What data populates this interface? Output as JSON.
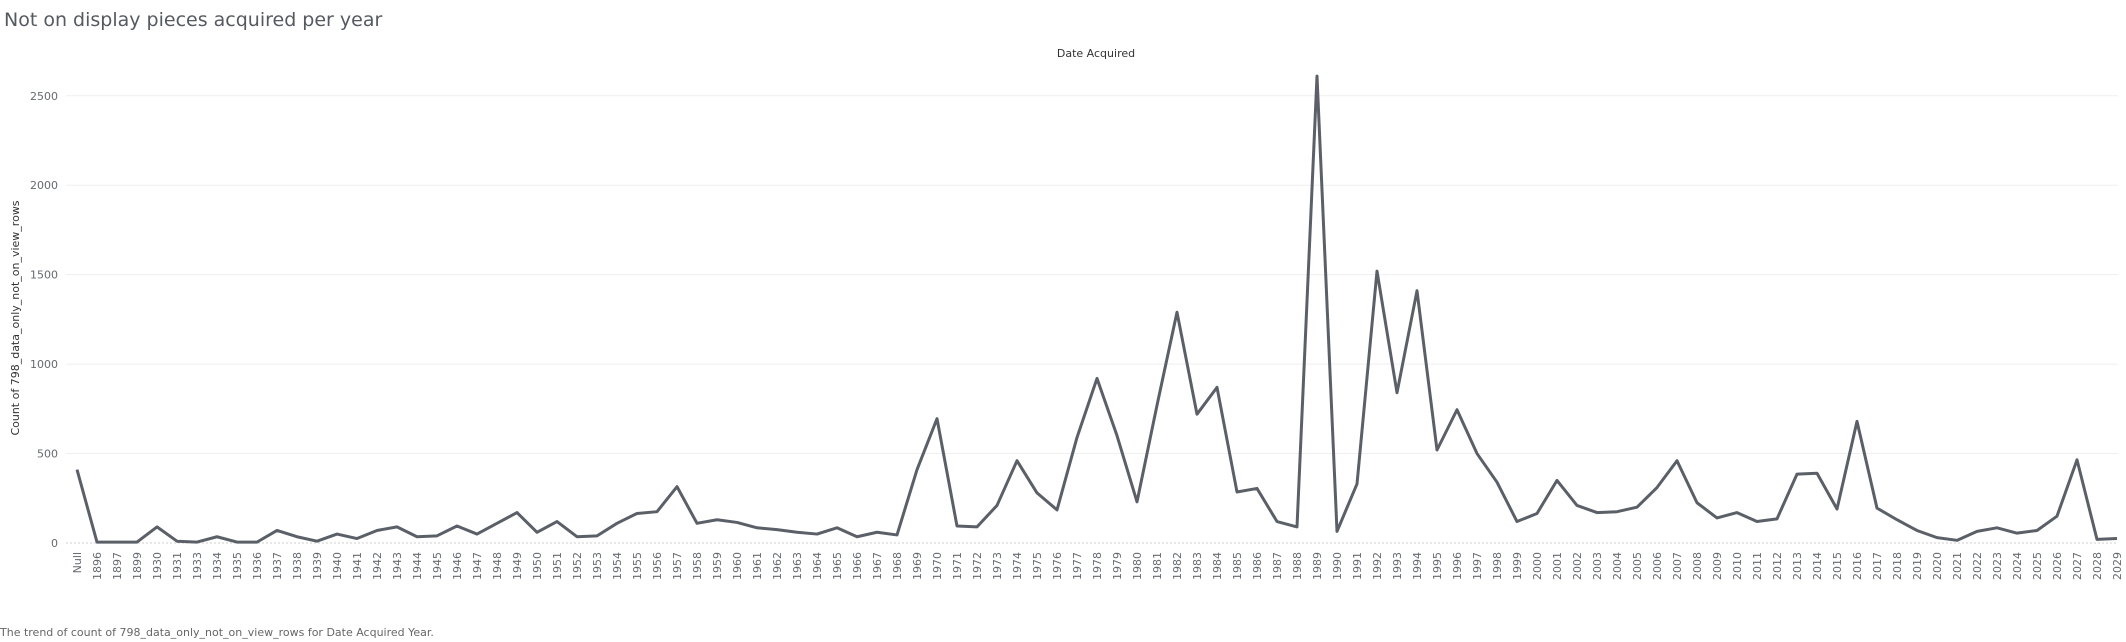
{
  "page": {
    "title": "Not on display pieces acquired per year",
    "caption": "The trend of count of 798_data_only_not_on_view_rows for Date Acquired Year."
  },
  "chart_data": {
    "type": "line",
    "title": "Not on display pieces acquired per year",
    "xlabel": "Date Acquired",
    "ylabel": "Count of 798_data_only_not_on_view_rows",
    "ylim": [
      0,
      2700
    ],
    "yticks": [
      0,
      500,
      1000,
      1500,
      2000,
      2500
    ],
    "grid": true,
    "series_color": "#5b6068",
    "categories": [
      "Null",
      "1896",
      "1897",
      "1899",
      "1930",
      "1931",
      "1933",
      "1934",
      "1935",
      "1936",
      "1937",
      "1938",
      "1939",
      "1940",
      "1941",
      "1942",
      "1943",
      "1944",
      "1945",
      "1946",
      "1947",
      "1948",
      "1949",
      "1950",
      "1951",
      "1952",
      "1953",
      "1954",
      "1955",
      "1956",
      "1957",
      "1958",
      "1959",
      "1960",
      "1961",
      "1962",
      "1963",
      "1964",
      "1965",
      "1966",
      "1967",
      "1968",
      "1969",
      "1970",
      "1971",
      "1972",
      "1973",
      "1974",
      "1975",
      "1976",
      "1977",
      "1978",
      "1979",
      "1980",
      "1981",
      "1982",
      "1983",
      "1984",
      "1985",
      "1986",
      "1987",
      "1988",
      "1989",
      "1990",
      "1991",
      "1992",
      "1993",
      "1994",
      "1995",
      "1996",
      "1997",
      "1998",
      "1999",
      "2000",
      "2001",
      "2002",
      "2003",
      "2004",
      "2005",
      "2006",
      "2007",
      "2008",
      "2009",
      "2010",
      "2011",
      "2012",
      "2013",
      "2014",
      "2015",
      "2016",
      "2017",
      "2018",
      "2019",
      "2020",
      "2021",
      "2022",
      "2023",
      "2024",
      "2025",
      "2026",
      "2027",
      "2028",
      "2029"
    ],
    "values": [
      410,
      5,
      5,
      5,
      90,
      10,
      5,
      35,
      5,
      5,
      70,
      35,
      10,
      50,
      25,
      70,
      90,
      35,
      40,
      95,
      50,
      110,
      170,
      60,
      120,
      35,
      40,
      110,
      165,
      175,
      315,
      110,
      130,
      115,
      85,
      75,
      60,
      50,
      85,
      35,
      60,
      45,
      410,
      695,
      95,
      90,
      210,
      460,
      280,
      185,
      590,
      920,
      600,
      230,
      770,
      1290,
      720,
      870,
      285,
      305,
      120,
      90,
      2610,
      65,
      330,
      1520,
      840,
      1410,
      520,
      745,
      500,
      340,
      120,
      165,
      350,
      210,
      170,
      175,
      200,
      310,
      460,
      225,
      140,
      170,
      120,
      135,
      385,
      390,
      190,
      680,
      195,
      130,
      70,
      30,
      15,
      65,
      85,
      55,
      70,
      150,
      465,
      20,
      25
    ]
  }
}
